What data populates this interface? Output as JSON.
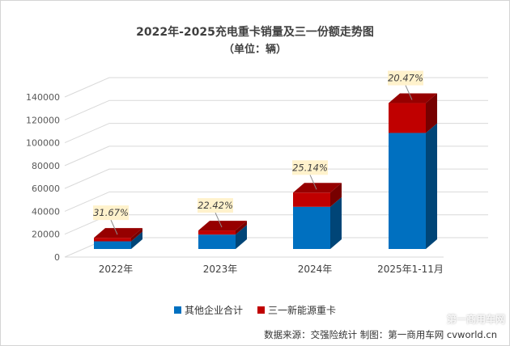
{
  "titles": {
    "main": "2022年-2025充电重卡销量及三一份额走势图",
    "unit": "（单位：辆）"
  },
  "source_text": "数据来源：交强险统计 制图：第一商用车网 cvworld.cn",
  "watermark": "第一商用车网",
  "colors": {
    "other": "#0070c0",
    "sany": "#c00000",
    "label_bg": "#fff2cc"
  },
  "chart_data": {
    "type": "bar",
    "stacked": true,
    "three_d": true,
    "title": "2022年-2025充电重卡销量及三一份额走势图",
    "subtitle": "（单位：辆）",
    "categories": [
      "2022年",
      "2023年",
      "2024年",
      "2025年1-11月"
    ],
    "series": [
      {
        "name": "其他企业合计",
        "values": [
          6700,
          12600,
          36900,
          101500
        ]
      },
      {
        "name": "三一新能源重卡",
        "values": [
          3100,
          3600,
          12400,
          26100
        ]
      }
    ],
    "share_labels": [
      "31.67%",
      "22.42%",
      "25.14%",
      "20.47%"
    ],
    "ylim": [
      0,
      140000
    ],
    "yticks": [
      0,
      20000,
      40000,
      60000,
      80000,
      100000,
      120000,
      140000
    ],
    "grid": true,
    "legend_position": "bottom"
  }
}
